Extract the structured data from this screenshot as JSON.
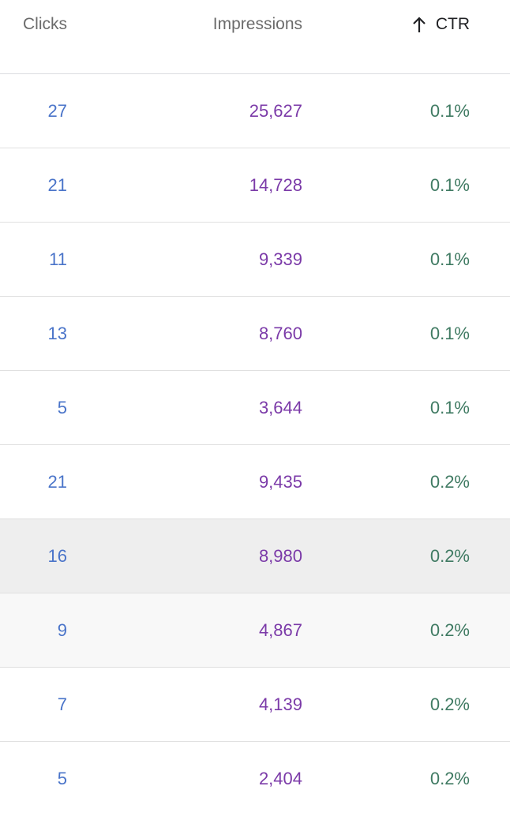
{
  "columns": {
    "clicks": "Clicks",
    "impressions": "Impressions",
    "ctr": "CTR",
    "sort_icon": "arrow-up-icon"
  },
  "colors": {
    "clicks": "#4a74c9",
    "impressions": "#7b3aa8",
    "ctr": "#3f7a62"
  },
  "rows": [
    {
      "clicks": "27",
      "impressions": "25,627",
      "ctr": "0.1%"
    },
    {
      "clicks": "21",
      "impressions": "14,728",
      "ctr": "0.1%"
    },
    {
      "clicks": "11",
      "impressions": "9,339",
      "ctr": "0.1%"
    },
    {
      "clicks": "13",
      "impressions": "8,760",
      "ctr": "0.1%"
    },
    {
      "clicks": "5",
      "impressions": "3,644",
      "ctr": "0.1%"
    },
    {
      "clicks": "21",
      "impressions": "9,435",
      "ctr": "0.2%"
    },
    {
      "clicks": "16",
      "impressions": "8,980",
      "ctr": "0.2%"
    },
    {
      "clicks": "9",
      "impressions": "4,867",
      "ctr": "0.2%"
    },
    {
      "clicks": "7",
      "impressions": "4,139",
      "ctr": "0.2%"
    },
    {
      "clicks": "5",
      "impressions": "2,404",
      "ctr": "0.2%"
    }
  ]
}
